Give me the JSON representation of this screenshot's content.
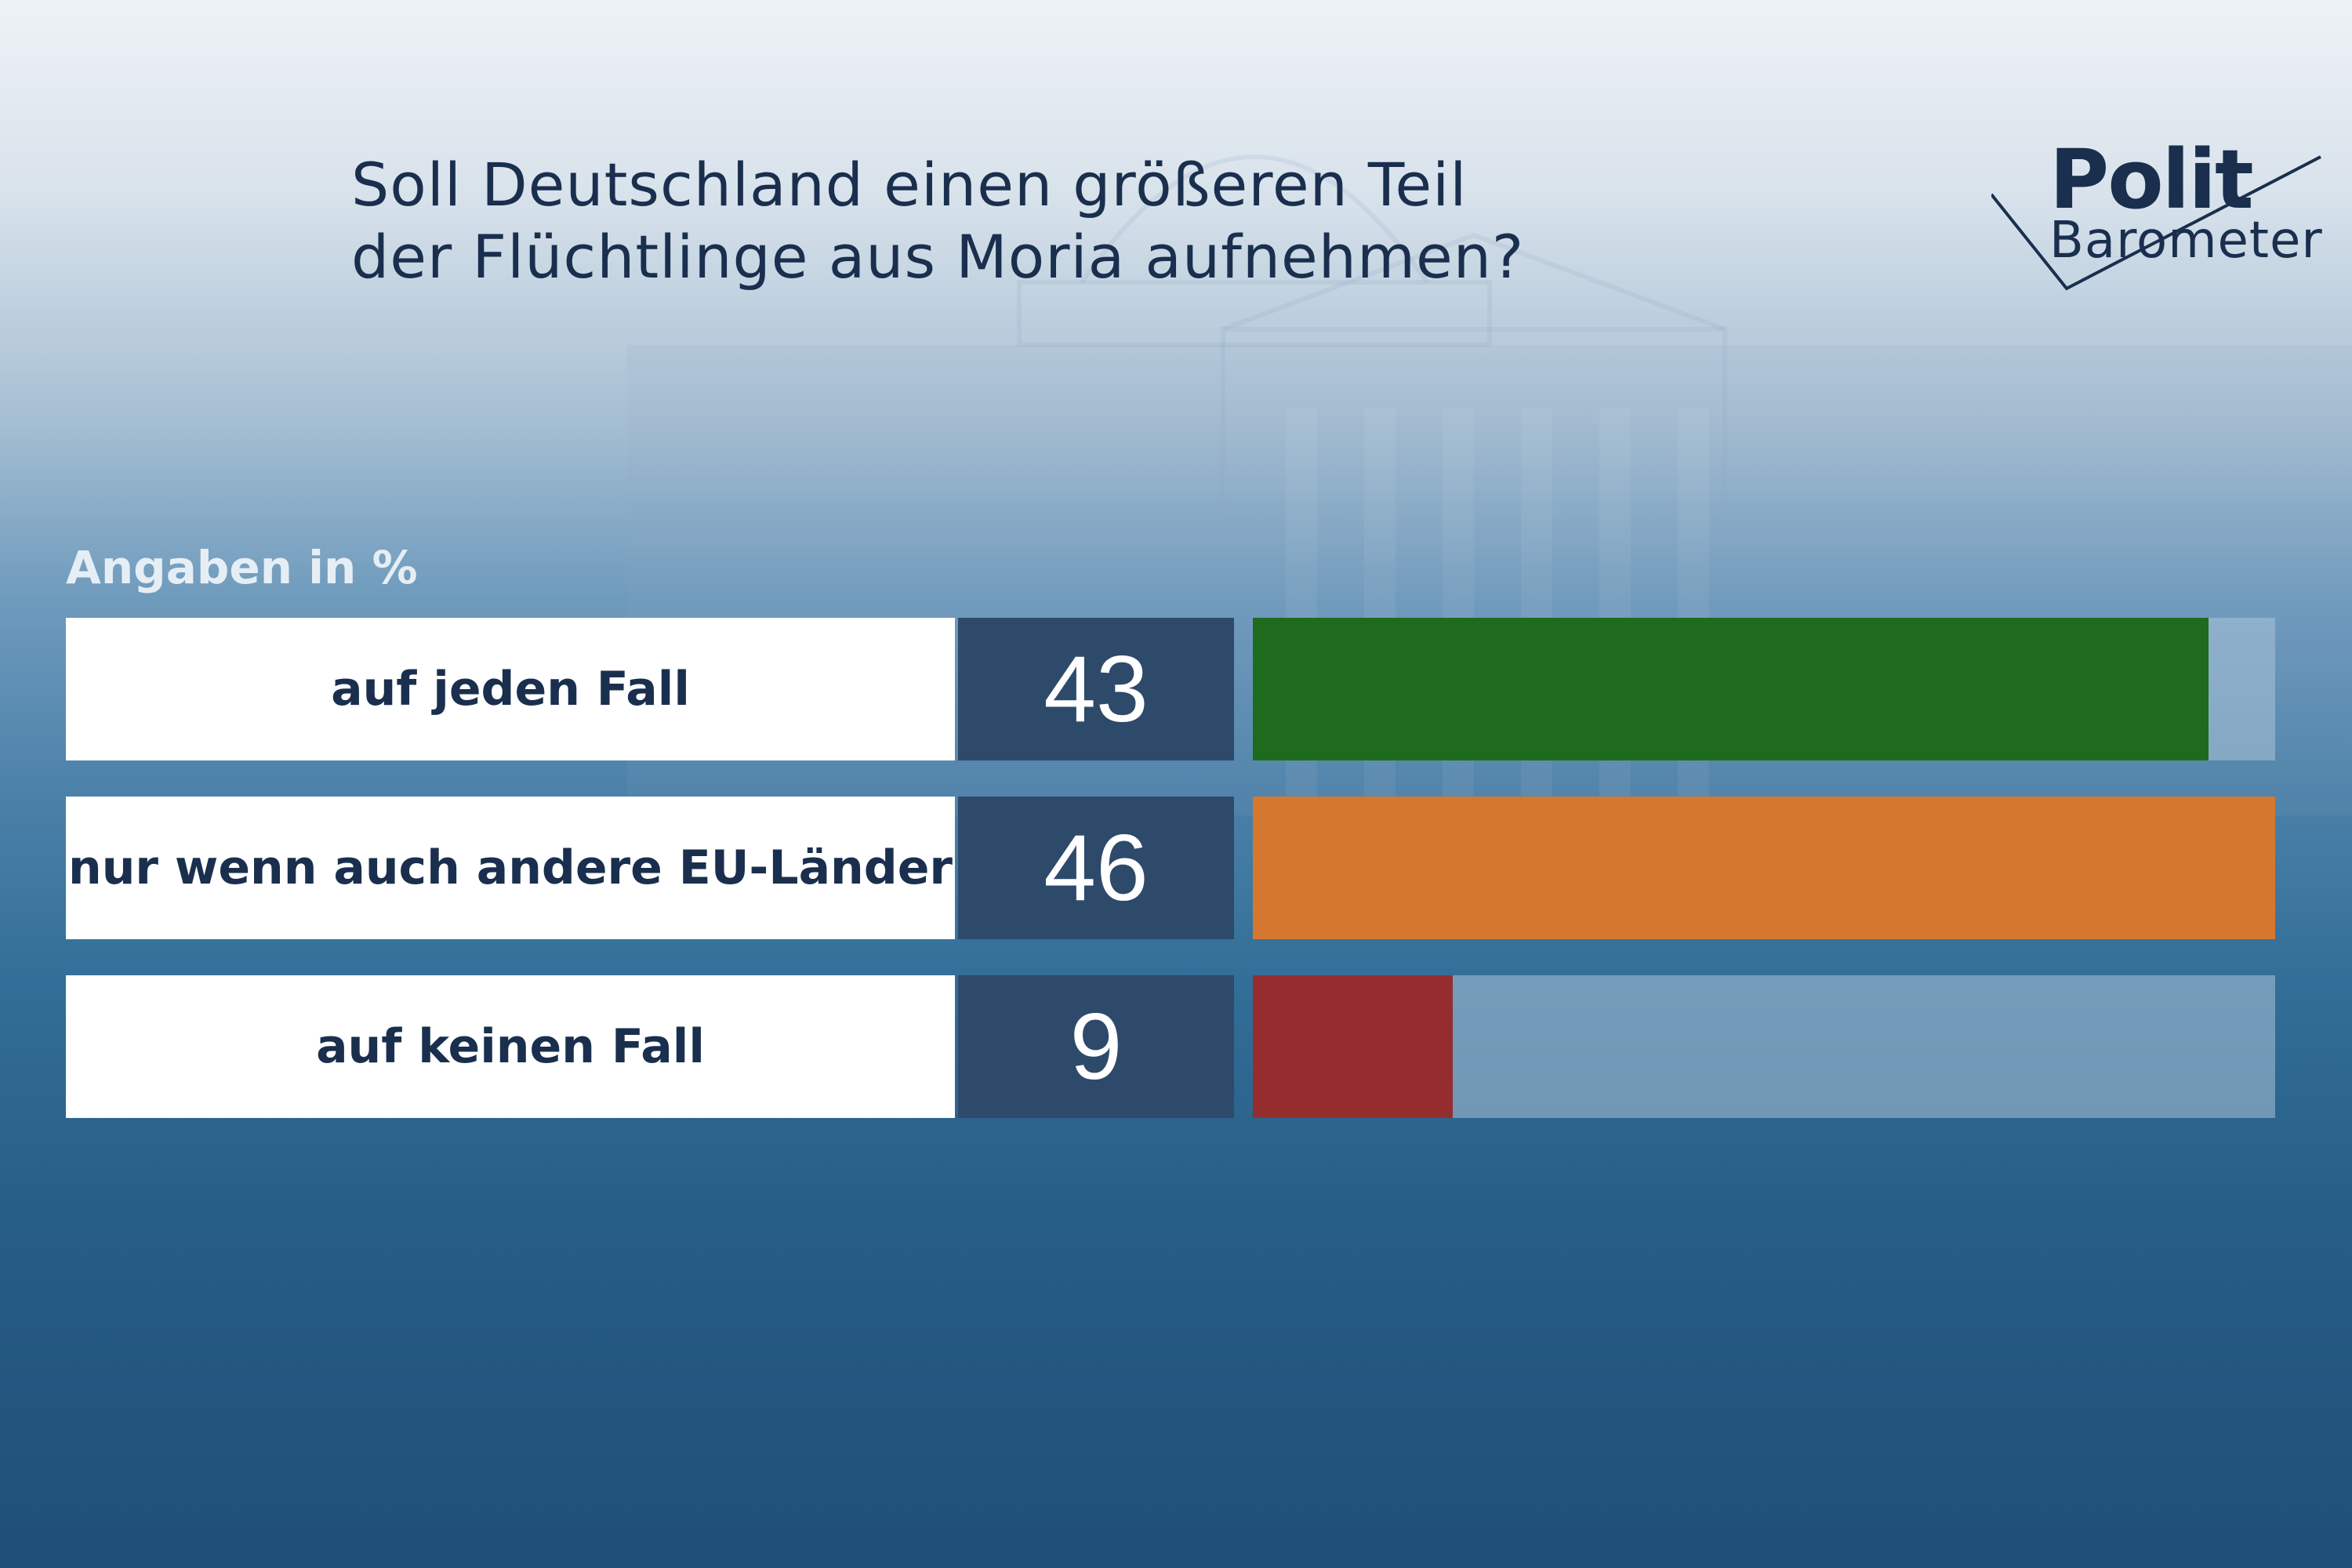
{
  "title": {
    "line1": "Soll Deutschland einen größeren Teil",
    "line2": "der Flüchtlinge aus Moria aufnehmen?"
  },
  "logo": {
    "line1": "Polit",
    "line2": "Barometer"
  },
  "unit_label": "Angaben in %",
  "chart_data": {
    "type": "bar",
    "orientation": "horizontal",
    "title": "Soll Deutschland einen größeren Teil der Flüchtlinge aus Moria aufnehmen?",
    "ylabel": "Angaben in %",
    "categories": [
      "auf jeden Fall",
      "nur wenn auch andere EU-Länder",
      "auf keinen Fall"
    ],
    "values": [
      43,
      46,
      9
    ],
    "value_labels": [
      "43",
      "46",
      "9"
    ],
    "colors": [
      "#1e6b1e",
      "#d4782f",
      "#952d2f"
    ],
    "xlim": [
      0,
      46
    ],
    "grid": false
  }
}
